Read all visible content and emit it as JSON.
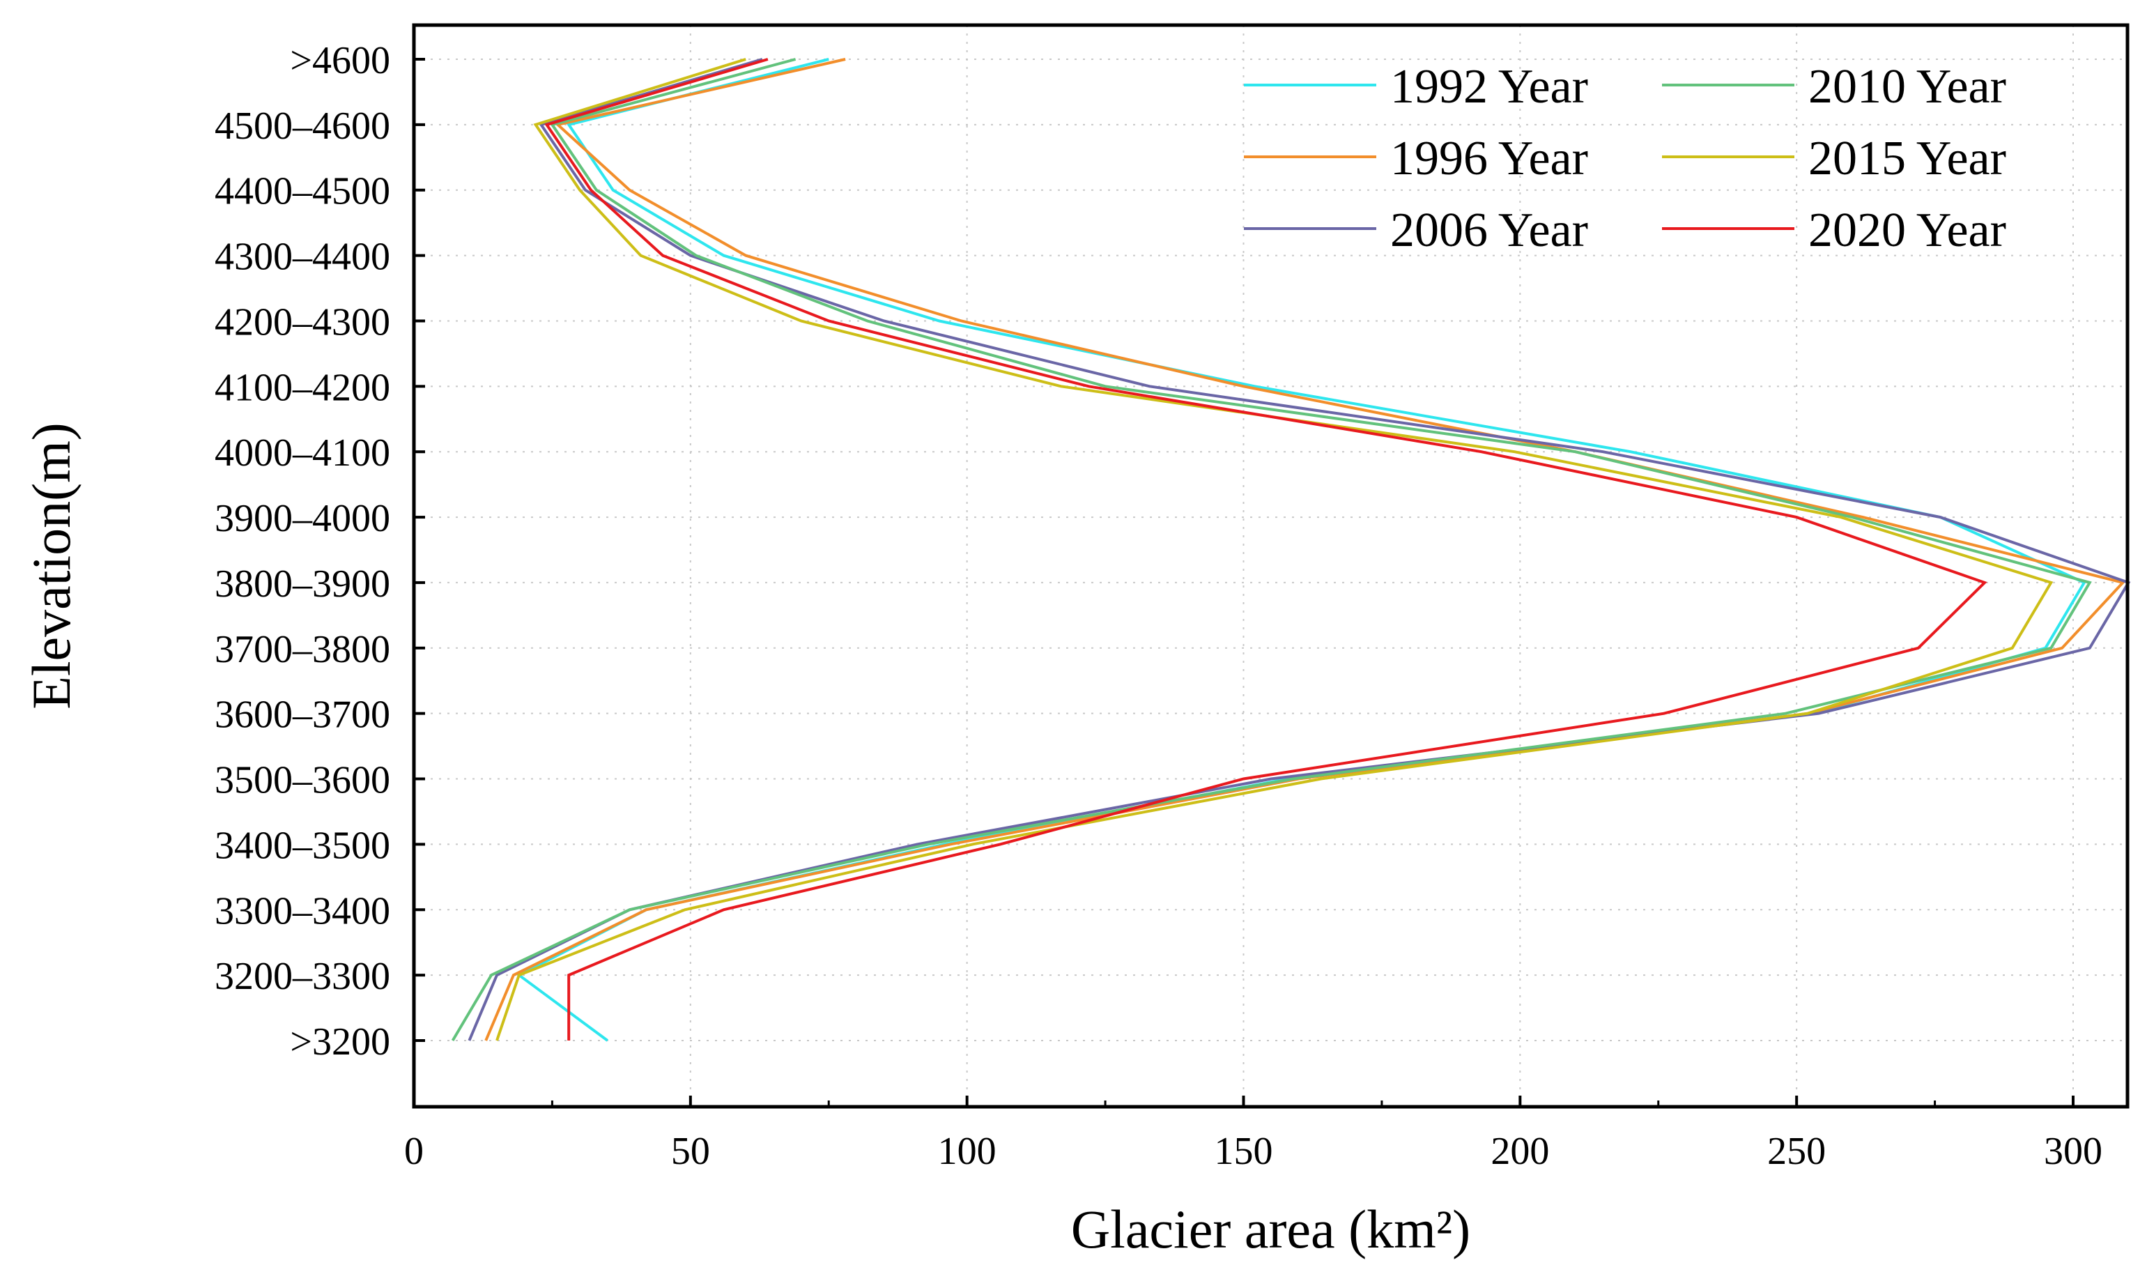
{
  "chart_data": {
    "type": "line",
    "orientation": "horizontal-profile",
    "title": "",
    "xlabel": "Glacier area (km²)",
    "ylabel": "Elevation(m)",
    "xlim": [
      0,
      315
    ],
    "xticks": [
      0,
      50,
      100,
      150,
      200,
      250,
      300
    ],
    "categories": [
      ">3200",
      "3200–3300",
      "3300–3400",
      "3400–3500",
      "3500–3600",
      "3600–3700",
      "3700–3800",
      "3800–3900",
      "3900–4000",
      "4000–4100",
      "4100–4200",
      "4200–4300",
      "4300–4400",
      "4400–4500",
      "4500–4600",
      ">4600"
    ],
    "grid": true,
    "legend": {
      "position": "top-right",
      "columns": 2
    },
    "series": [
      {
        "name": "1992 Year",
        "color": "#2EE6EE",
        "values": [
          35,
          19,
          42,
          96,
          158,
          253,
          295,
          302,
          276,
          220,
          152,
          95,
          56,
          36,
          28,
          75
        ]
      },
      {
        "name": "1996 Year",
        "color": "#F28E2B",
        "values": [
          13,
          18,
          42,
          97,
          160,
          252,
          298,
          309,
          262,
          210,
          150,
          99,
          60,
          39,
          26,
          78
        ]
      },
      {
        "name": "2006 Year",
        "color": "#6A66A6",
        "values": [
          10,
          15,
          39,
          91,
          155,
          254,
          303,
          310,
          276,
          215,
          133,
          85,
          50,
          31,
          23,
          63
        ]
      },
      {
        "name": "2010 Year",
        "color": "#62C27C",
        "values": [
          7,
          14,
          39,
          93,
          159,
          248,
          296,
          303,
          260,
          210,
          125,
          82,
          51,
          33,
          25,
          69
        ]
      },
      {
        "name": "2015 Year",
        "color": "#CDBE17",
        "values": [
          15,
          19,
          49,
          101,
          164,
          252,
          289,
          296,
          258,
          199,
          117,
          70,
          41,
          30,
          22,
          60
        ]
      },
      {
        "name": "2020 Year",
        "color": "#E8191E",
        "values": [
          28,
          28,
          56,
          106,
          150,
          226,
          272,
          284,
          250,
          193,
          122,
          75,
          45,
          32,
          24,
          64
        ]
      }
    ]
  }
}
